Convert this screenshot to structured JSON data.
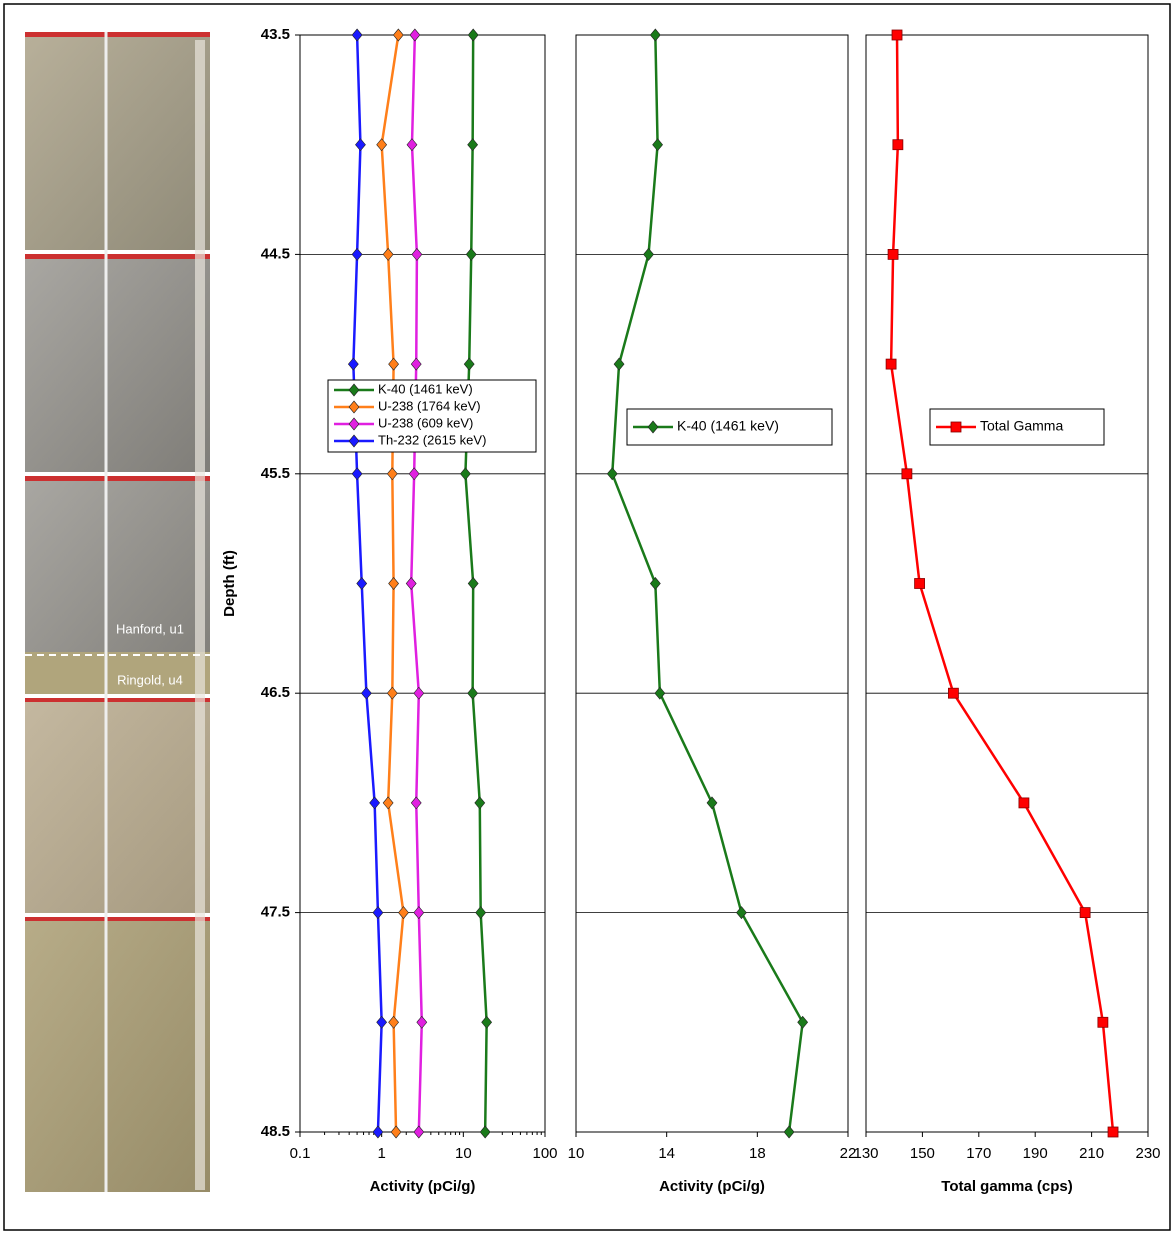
{
  "photo": {
    "labels": [
      "Hanford, u1",
      "Ringold, u4"
    ]
  },
  "chart_data": [
    {
      "type": "line",
      "x_scale": "log",
      "y_inverted": true,
      "grid": true,
      "legend": "middle-left",
      "ylabel": "Depth (ft)",
      "xlabel": "Activity (pCi/g)",
      "y": [
        43.5,
        44.0,
        44.5,
        45.0,
        45.5,
        46.0,
        46.5,
        47.0,
        47.5,
        48.0,
        48.5
      ],
      "ylim": [
        43.5,
        48.5
      ],
      "yticks": [
        43.5,
        44.5,
        45.5,
        46.5,
        47.5,
        48.5
      ],
      "xlim": [
        0.1,
        100
      ],
      "xticks": [
        0.1,
        1,
        10,
        100
      ],
      "series": [
        {
          "name": "K-40 (1461 keV)",
          "color": "#1a7a1a",
          "marker": "diamond",
          "values": [
            13.2,
            13.0,
            12.5,
            11.8,
            10.6,
            13.2,
            13.0,
            15.9,
            16.3,
            19.3,
            18.5
          ]
        },
        {
          "name": "U-238 (1764 keV)",
          "color": "#ff7f1a",
          "marker": "diamond",
          "values": [
            1.6,
            1.0,
            1.2,
            1.4,
            1.35,
            1.4,
            1.35,
            1.2,
            1.85,
            1.4,
            1.5
          ]
        },
        {
          "name": "U-238 (609 keV)",
          "color": "#e020e0",
          "marker": "diamond",
          "values": [
            2.55,
            2.35,
            2.7,
            2.65,
            2.5,
            2.3,
            2.85,
            2.65,
            2.85,
            3.1,
            2.85
          ]
        },
        {
          "name": "Th-232 (2615 keV)",
          "color": "#1a1aff",
          "marker": "diamond",
          "values": [
            0.5,
            0.55,
            0.5,
            0.45,
            0.5,
            0.57,
            0.65,
            0.82,
            0.9,
            1.0,
            0.9
          ]
        }
      ]
    },
    {
      "type": "line",
      "x_scale": "linear",
      "y_inverted": true,
      "grid": true,
      "legend": "middle-left",
      "xlabel": "Activity (pCi/g)",
      "y": [
        43.5,
        44.0,
        44.5,
        45.0,
        45.5,
        46.0,
        46.5,
        47.0,
        47.5,
        48.0,
        48.5
      ],
      "ylim": [
        43.5,
        48.5
      ],
      "xlim": [
        10,
        22
      ],
      "xticks": [
        10,
        14,
        18,
        22
      ],
      "series": [
        {
          "name": "K-40 (1461 keV)",
          "color": "#1a7a1a",
          "marker": "diamond",
          "values": [
            13.5,
            13.6,
            13.2,
            11.9,
            11.6,
            13.5,
            13.7,
            16.0,
            17.3,
            20.0,
            19.4
          ]
        }
      ]
    },
    {
      "type": "line",
      "x_scale": "linear",
      "y_inverted": true,
      "grid": true,
      "legend": "middle-center",
      "xlabel": "Total gamma (cps)",
      "y": [
        43.5,
        44.0,
        44.5,
        45.0,
        45.5,
        46.0,
        46.5,
        47.0,
        47.5,
        48.0,
        48.5
      ],
      "ylim": [
        43.5,
        48.5
      ],
      "xlim": [
        130,
        230
      ],
      "xticks": [
        130,
        150,
        170,
        190,
        210,
        230
      ],
      "series": [
        {
          "name": "Total Gamma",
          "color": "#ff0000",
          "marker": "square",
          "values": [
            141,
            141.3,
            139.6,
            138.9,
            144.5,
            149,
            161,
            186,
            207.7,
            214,
            217.6
          ]
        }
      ]
    }
  ]
}
